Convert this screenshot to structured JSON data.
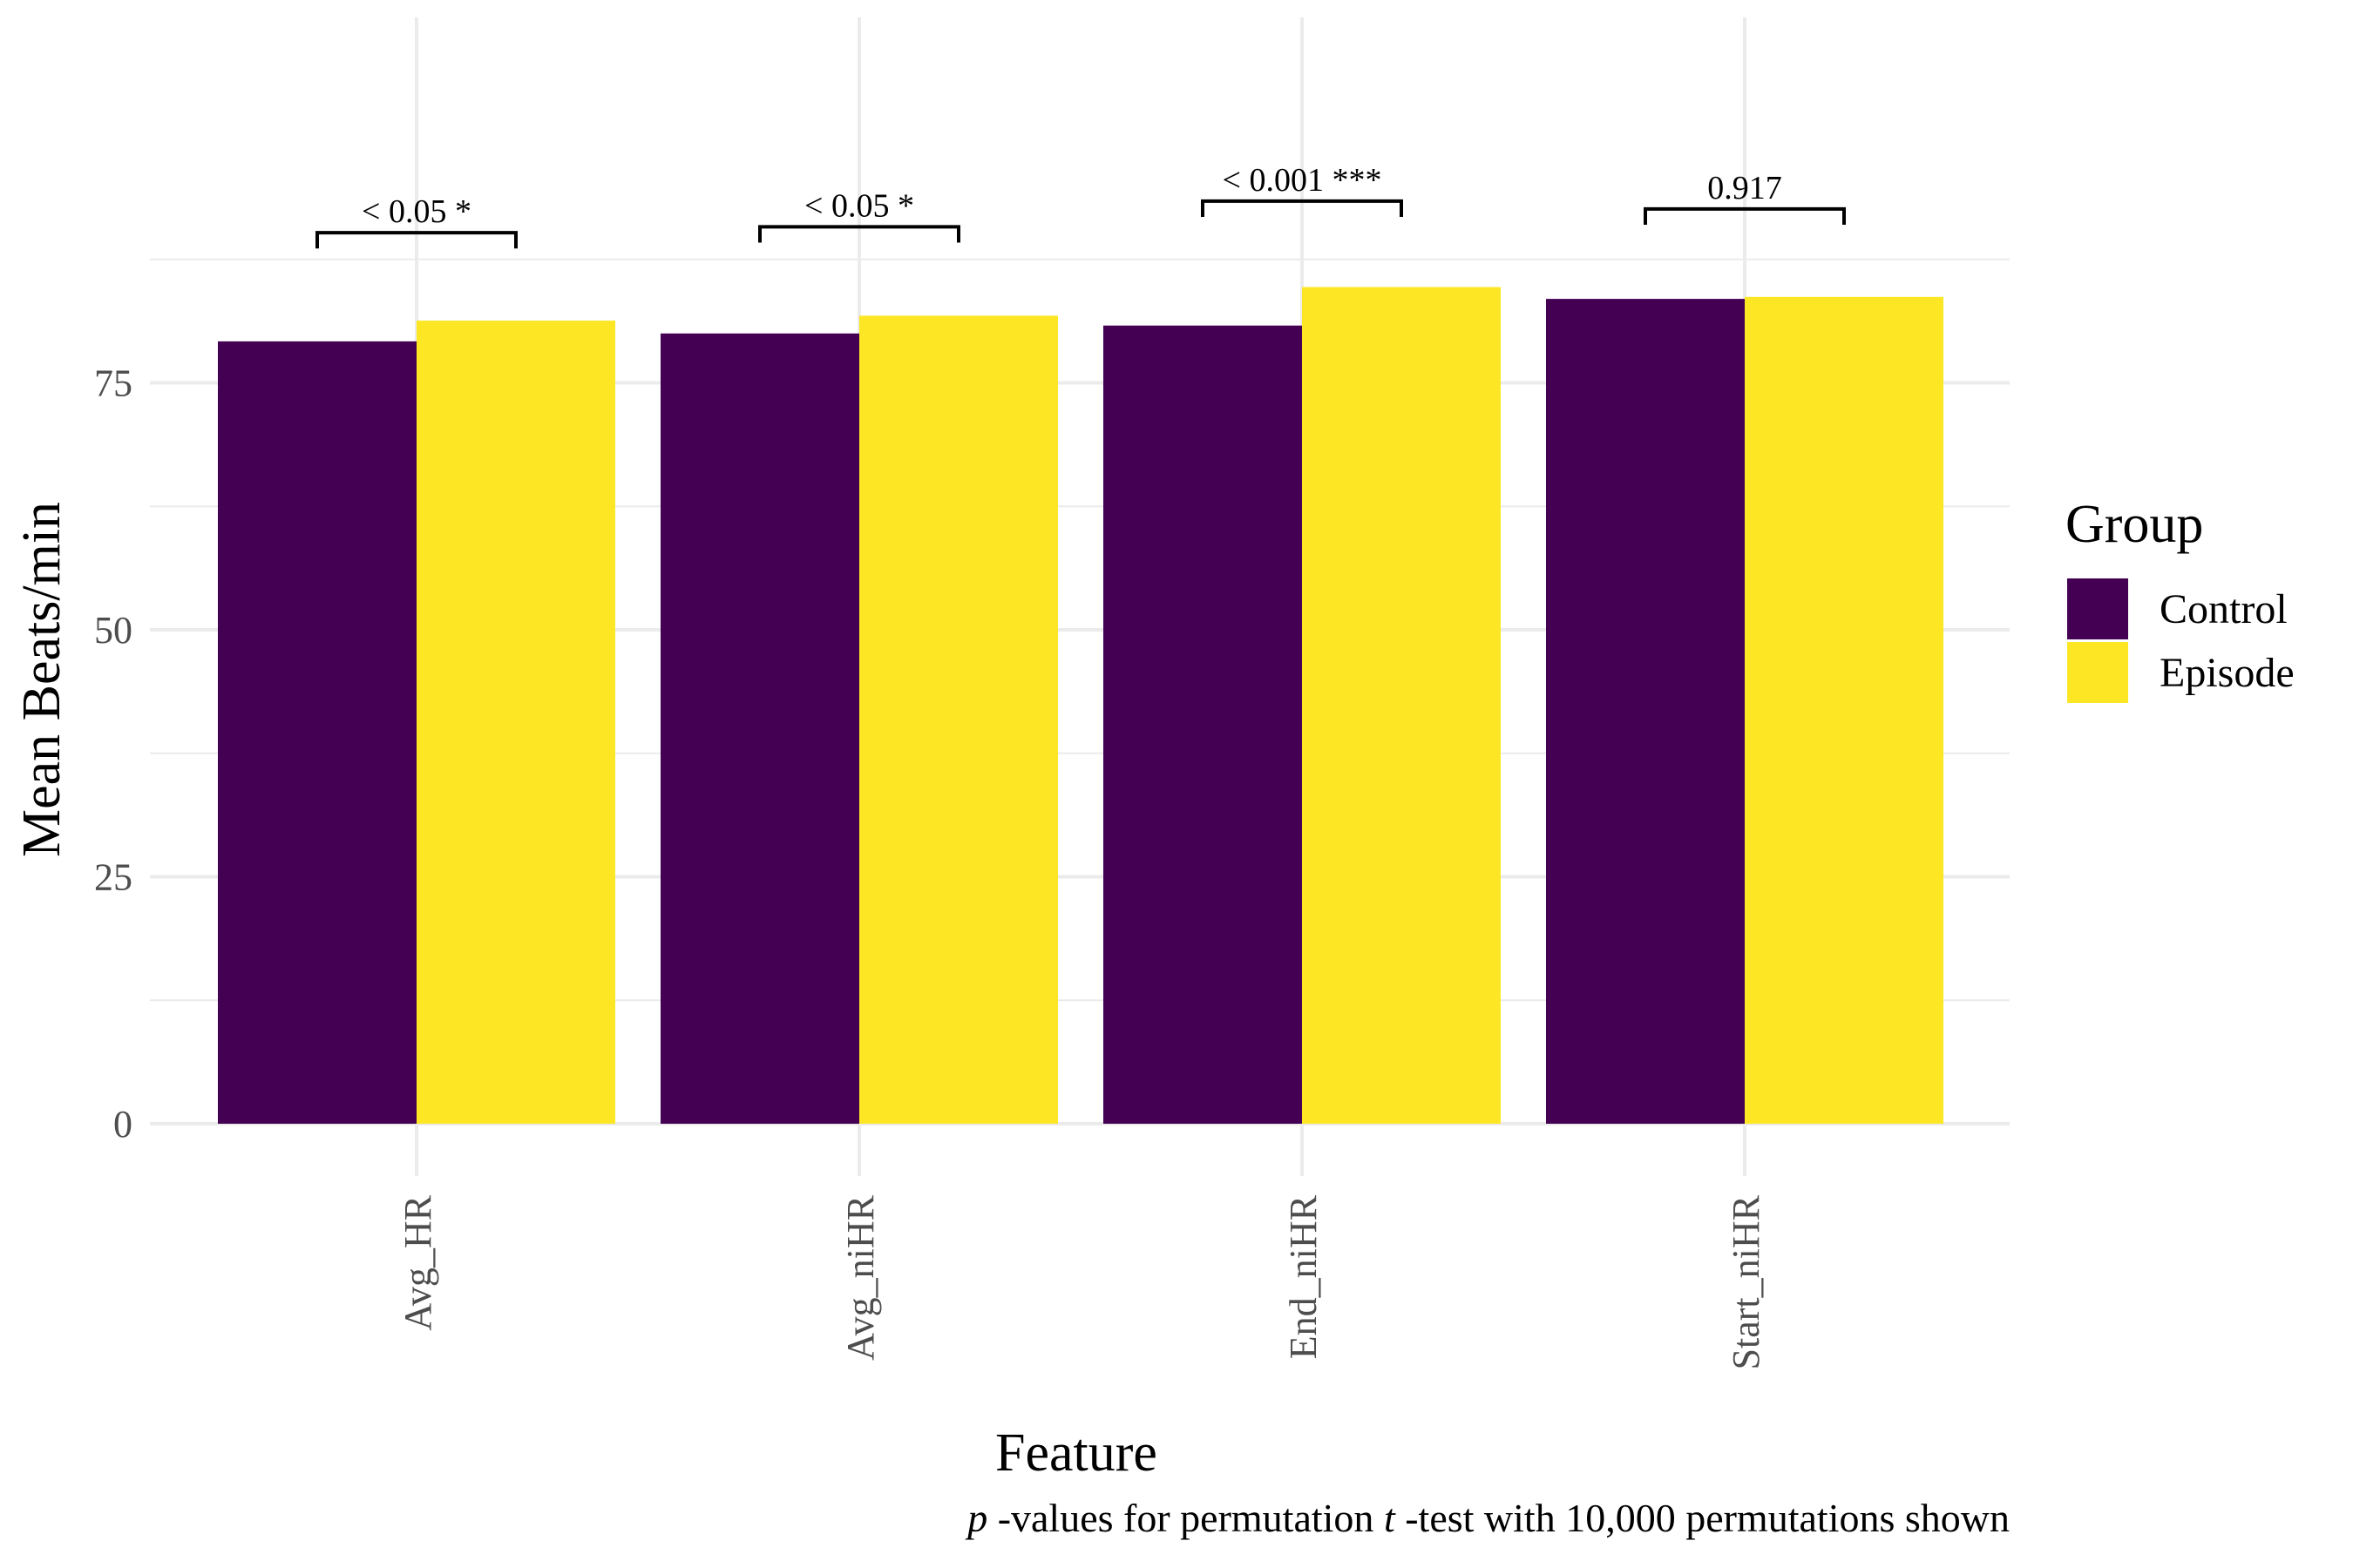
{
  "chart_data": {
    "type": "bar",
    "categories": [
      "Avg_HR",
      "Avg_niHR",
      "End_niHR",
      "Start_niHR"
    ],
    "series": [
      {
        "name": "Control",
        "color": "#440154",
        "values": [
          79.2,
          80.0,
          80.8,
          83.5
        ]
      },
      {
        "name": "Episode",
        "color": "#FDE725",
        "values": [
          81.3,
          81.8,
          84.7,
          83.7
        ]
      }
    ],
    "xlabel": "Feature",
    "ylabel": "Mean Beats/min",
    "ylim": [
      0,
      88
    ],
    "yticks": [
      0,
      25,
      50,
      75
    ],
    "grid": true,
    "legend": {
      "title": "Group",
      "position": "right"
    },
    "annotations": [
      {
        "category": "Avg_HR",
        "label": "< 0.05 *",
        "bracket_top": 90.2,
        "bracket_bottom": 88.6
      },
      {
        "category": "Avg_niHR",
        "label": "< 0.05 *",
        "bracket_top": 90.8,
        "bracket_bottom": 89.2
      },
      {
        "category": "End_niHR",
        "label": "< 0.001 ***",
        "bracket_top": 93.4,
        "bracket_bottom": 91.8
      },
      {
        "category": "Start_niHR",
        "label": "0.917",
        "bracket_top": 92.6,
        "bracket_bottom": 91.0
      }
    ],
    "caption": {
      "p": "p",
      "part1": " -values for permutation  ",
      "t": "t",
      "part2": " -test with 10,000 permutations shown"
    }
  }
}
